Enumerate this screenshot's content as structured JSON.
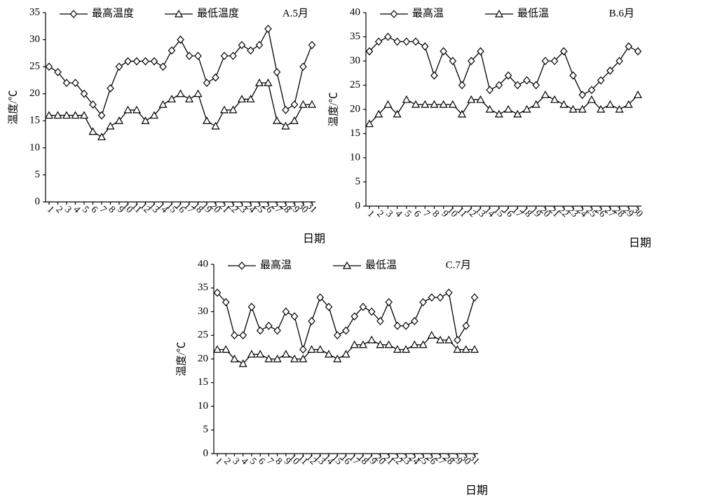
{
  "chart_data": [
    {
      "type": "line",
      "annotation": "A.5月",
      "ylabel": "温度/℃",
      "xlabel": "日期",
      "categories": [
        "1",
        "2",
        "3",
        "4",
        "5",
        "6",
        "7",
        "8",
        "9",
        "10",
        "11",
        "12",
        "13",
        "14",
        "15",
        "16",
        "17",
        "18",
        "19",
        "20",
        "21",
        "22",
        "23",
        "24",
        "25",
        "26",
        "27",
        "28",
        "29",
        "30",
        "31"
      ],
      "series": [
        {
          "name": "最高温度",
          "color": "#000000",
          "marker": "diamond",
          "values": [
            25,
            24,
            22,
            22,
            20,
            18,
            16,
            21,
            25,
            26,
            26,
            26,
            26,
            25,
            28,
            30,
            27,
            27,
            22,
            23,
            27,
            27,
            29,
            28,
            29,
            32,
            24,
            17,
            18,
            25,
            29
          ]
        },
        {
          "name": "最低温度",
          "color": "#000000",
          "marker": "triangle",
          "values": [
            16,
            16,
            16,
            16,
            16,
            13,
            12,
            14,
            15,
            17,
            17,
            15,
            16,
            18,
            19,
            20,
            19,
            20,
            15,
            14,
            17,
            17,
            19,
            19,
            22,
            22,
            15,
            14,
            15,
            18,
            18
          ]
        }
      ],
      "ylim": [
        0,
        35
      ],
      "yticks": [
        0,
        5,
        10,
        15,
        20,
        25,
        30,
        35
      ]
    },
    {
      "type": "line",
      "annotation": "B.6月",
      "ylabel": "温度/℃",
      "xlabel": "日期",
      "categories": [
        "1",
        "2",
        "3",
        "4",
        "5",
        "6",
        "7",
        "8",
        "9",
        "10",
        "11",
        "12",
        "13",
        "14",
        "15",
        "16",
        "17",
        "18",
        "19",
        "20",
        "21",
        "22",
        "23",
        "24",
        "25",
        "26",
        "27",
        "28",
        "29",
        "30"
      ],
      "series": [
        {
          "name": "最高温",
          "color": "#000000",
          "marker": "diamond",
          "values": [
            32,
            34,
            35,
            34,
            34,
            34,
            33,
            27,
            32,
            30,
            25,
            30,
            32,
            24,
            25,
            27,
            25,
            26,
            25,
            30,
            30,
            32,
            27,
            23,
            24,
            26,
            28,
            30,
            33,
            32
          ]
        },
        {
          "name": "最低温",
          "color": "#000000",
          "marker": "triangle",
          "values": [
            17,
            19,
            21,
            19,
            22,
            21,
            21,
            21,
            21,
            21,
            19,
            22,
            22,
            20,
            19,
            20,
            19,
            20,
            21,
            23,
            22,
            21,
            20,
            20,
            22,
            20,
            21,
            20,
            21,
            23
          ]
        }
      ],
      "ylim": [
        0,
        40
      ],
      "yticks": [
        0,
        5,
        10,
        15,
        20,
        25,
        30,
        35,
        40
      ]
    },
    {
      "type": "line",
      "annotation": "C.7月",
      "ylabel": "温度/℃",
      "xlabel": "日期",
      "categories": [
        "1",
        "2",
        "3",
        "4",
        "5",
        "6",
        "7",
        "8",
        "9",
        "10",
        "11",
        "12",
        "13",
        "14",
        "15",
        "16",
        "17",
        "18",
        "19",
        "20",
        "21",
        "22",
        "23",
        "24",
        "25",
        "26",
        "27",
        "28",
        "29",
        "30",
        "31"
      ],
      "series": [
        {
          "name": "最高温",
          "color": "#000000",
          "marker": "diamond",
          "values": [
            34,
            32,
            25,
            25,
            31,
            26,
            27,
            26,
            30,
            29,
            22,
            28,
            33,
            31,
            25,
            26,
            29,
            31,
            30,
            28,
            32,
            27,
            27,
            28,
            32,
            33,
            33,
            34,
            24,
            27,
            33
          ]
        },
        {
          "name": "最低温",
          "color": "#000000",
          "marker": "triangle",
          "values": [
            22,
            22,
            20,
            19,
            21,
            21,
            20,
            20,
            21,
            20,
            20,
            22,
            22,
            21,
            20,
            21,
            23,
            23,
            24,
            23,
            23,
            22,
            22,
            23,
            23,
            25,
            24,
            24,
            22,
            22,
            22
          ]
        }
      ],
      "ylim": [
        0,
        40
      ],
      "yticks": [
        0,
        5,
        10,
        15,
        20,
        25,
        30,
        35,
        40
      ]
    }
  ]
}
